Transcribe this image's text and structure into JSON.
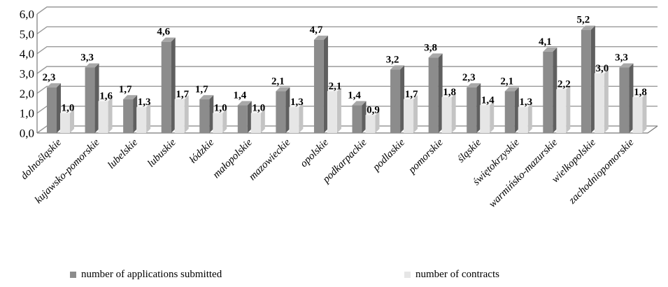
{
  "chart_data": {
    "type": "bar",
    "title": "",
    "xlabel": "",
    "ylabel": "",
    "ylim": [
      0,
      6
    ],
    "yticks": [
      "0,0",
      "1,0",
      "2,0",
      "3,0",
      "4,0",
      "5,0",
      "6,0"
    ],
    "grid": true,
    "legend_position": "bottom",
    "categories": [
      "dolnośląskie",
      "kujawsko-pomorskie",
      "lubelskie",
      "lubuskie",
      "łódzkie",
      "małopolskie",
      "mazowieckie",
      "opolskie",
      "podkarpackie",
      "podlaskie",
      "pomorskie",
      "śląskie",
      "świętokrzyskie",
      "warmińsko-mazurskie",
      "wielkopolskie",
      "zachodniopomorskie"
    ],
    "series": [
      {
        "name": "number of applications submitted",
        "values": [
          2.3,
          3.3,
          1.7,
          4.6,
          1.7,
          1.4,
          2.1,
          4.7,
          1.4,
          3.2,
          3.8,
          2.3,
          2.1,
          4.1,
          5.2,
          3.3
        ],
        "labels": [
          "2,3",
          "3,3",
          "1,7",
          "4,6",
          "1,7",
          "1,4",
          "2,1",
          "4,7",
          "1,4",
          "3,2",
          "3,8",
          "2,3",
          "2,1",
          "4,1",
          "5,2",
          "3,3"
        ],
        "color": "#8c8c8c"
      },
      {
        "name": "number of contracts",
        "values": [
          1.0,
          1.6,
          1.3,
          1.7,
          1.0,
          1.0,
          1.3,
          2.1,
          0.9,
          1.7,
          1.8,
          1.4,
          1.3,
          2.2,
          3.0,
          1.8
        ],
        "labels": [
          "1,0",
          "1,6",
          "1,3",
          "1,7",
          "1,0",
          "1,0",
          "1,3",
          "2,1",
          "0,9",
          "1,7",
          "1,8",
          "1,4",
          "1,3",
          "2,2",
          "3,0",
          "1,8"
        ],
        "color": "#e6e6e6"
      }
    ]
  }
}
